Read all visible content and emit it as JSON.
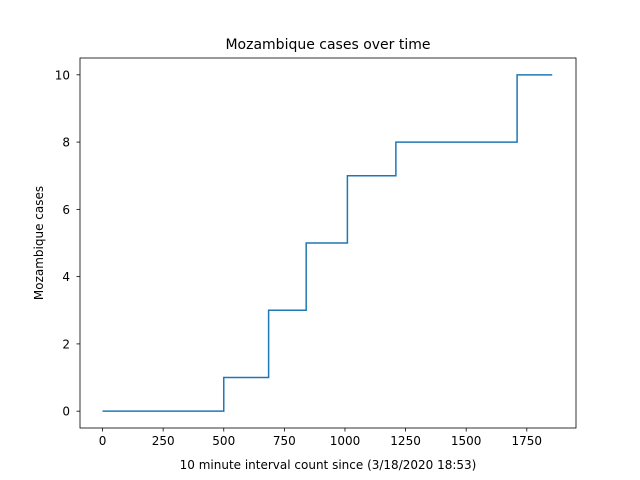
{
  "chart_data": {
    "type": "line",
    "drawstyle": "steps",
    "title": "Mozambique cases over time",
    "xlabel": "10 minute interval count since (3/18/2020 18:53)",
    "ylabel": "Mozambique cases",
    "xlim": [
      -93,
      1953
    ],
    "ylim": [
      -0.5,
      10.5
    ],
    "xticks": [
      0,
      250,
      500,
      750,
      1000,
      1250,
      1500,
      1750
    ],
    "yticks": [
      0,
      2,
      4,
      6,
      8,
      10
    ],
    "grid": false,
    "line_color": "#1f77b4",
    "series": [
      {
        "x": [
          0,
          500,
          500,
          685,
          685,
          840,
          840,
          1010,
          1010,
          1210,
          1210,
          1710,
          1710,
          1855
        ],
        "y": [
          0,
          0,
          1,
          1,
          3,
          3,
          5,
          5,
          7,
          7,
          8,
          8,
          10,
          10
        ]
      }
    ]
  }
}
